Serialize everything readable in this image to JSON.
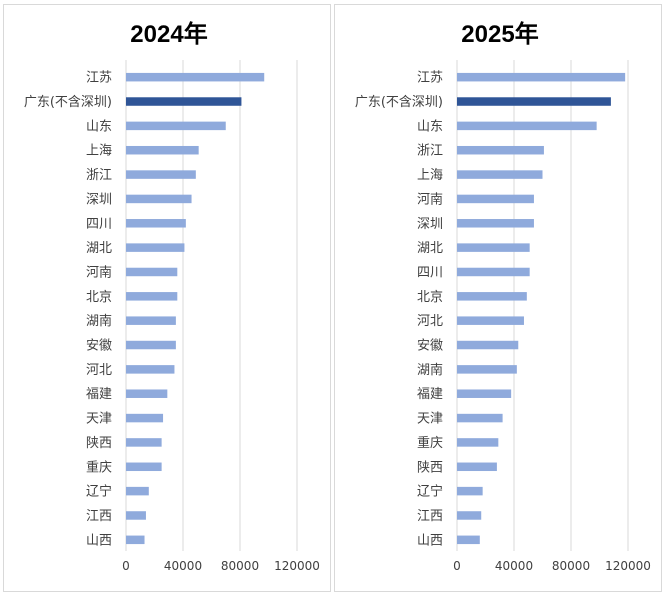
{
  "colors": {
    "bar": "#8faadc",
    "highlight": "#2f5597",
    "grid": "#d9d9d9",
    "text": "#404040"
  },
  "chart_data": [
    {
      "type": "bar",
      "orientation": "horizontal",
      "title": "2024年",
      "xlim": [
        0,
        120000
      ],
      "xticks": [
        "0",
        "40000",
        "80000",
        "120000"
      ],
      "xtick_values": [
        0,
        40000,
        80000,
        120000
      ],
      "grid": true,
      "categories": [
        "江苏",
        "广东(不含深圳)",
        "山东",
        "上海",
        "浙江",
        "深圳",
        "四川",
        "湖北",
        "河南",
        "北京",
        "湖南",
        "安徽",
        "河北",
        "福建",
        "天津",
        "陕西",
        "重庆",
        "辽宁",
        "江西",
        "山西"
      ],
      "values": [
        97000,
        81000,
        70000,
        51000,
        49000,
        46000,
        42000,
        41000,
        36000,
        36000,
        35000,
        35000,
        34000,
        29000,
        26000,
        25000,
        25000,
        16000,
        14000,
        13000
      ],
      "highlight_index": 1
    },
    {
      "type": "bar",
      "orientation": "horizontal",
      "title": "2025年",
      "xlim": [
        0,
        120000
      ],
      "xticks": [
        "0",
        "40000",
        "80000",
        "120000"
      ],
      "xtick_values": [
        0,
        40000,
        80000,
        120000
      ],
      "grid": true,
      "categories": [
        "江苏",
        "广东(不含深圳)",
        "山东",
        "浙江",
        "上海",
        "河南",
        "深圳",
        "湖北",
        "四川",
        "北京",
        "河北",
        "安徽",
        "湖南",
        "福建",
        "天津",
        "重庆",
        "陕西",
        "辽宁",
        "江西",
        "山西"
      ],
      "values": [
        118000,
        108000,
        98000,
        61000,
        60000,
        54000,
        54000,
        51000,
        51000,
        49000,
        47000,
        43000,
        42000,
        38000,
        32000,
        29000,
        28000,
        18000,
        17000,
        16000
      ],
      "highlight_index": 1
    }
  ]
}
